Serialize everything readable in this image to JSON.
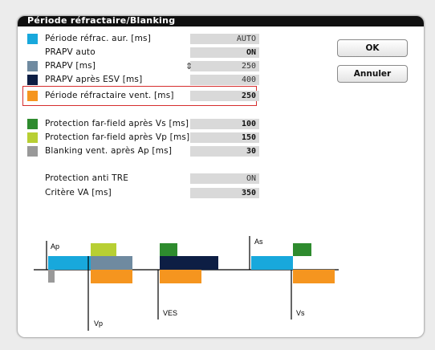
{
  "window": {
    "title": "Période réfractaire/Blanking"
  },
  "colors": {
    "cyan": "#18a8dc",
    "steel": "#6f8aa0",
    "navy": "#0d1e44",
    "orange": "#f5951f",
    "dark_green": "#2e8b2e",
    "lime": "#b8cf33",
    "gray": "#999999",
    "highlight": "#d62d2d"
  },
  "rows": [
    {
      "label": "Période réfrac. aur. [ms]",
      "value": "AUTO",
      "color": "cyan"
    },
    {
      "label": "PRAPV auto",
      "value": "ON"
    },
    {
      "label": "PRAPV [ms]",
      "value": "250",
      "color": "steel"
    },
    {
      "label": "PRAPV après ESV [ms]",
      "value": "400",
      "color": "navy"
    },
    {
      "label": "Période réfractaire vent. [ms]",
      "value": "250",
      "color": "orange"
    },
    {
      "label": "Protection far-field après Vs [ms]",
      "value": "100",
      "color": "dark_green"
    },
    {
      "label": "Protection far-field après Vp [ms]",
      "value": "150",
      "color": "lime"
    },
    {
      "label": "Blanking vent. après Ap [ms]",
      "value": "30",
      "color": "gray"
    },
    {
      "label": "Protection anti TRE",
      "value": "ON"
    },
    {
      "label": "Critère VA [ms]",
      "value": "350"
    }
  ],
  "buttons": {
    "ok": "OK",
    "cancel": "Annuler"
  },
  "stepper_icon": "up-down-stepper-icon",
  "diagram": {
    "ap": "Ap",
    "vp": "Vp",
    "ves": "VES",
    "as": "As",
    "vs": "Vs"
  }
}
